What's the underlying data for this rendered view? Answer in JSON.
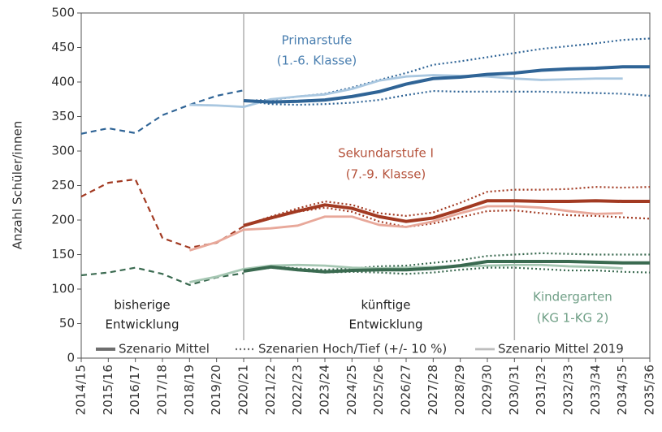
{
  "chart_data": {
    "type": "line",
    "y_label": "Anzahl Schüler/innen",
    "categories": [
      "2014/15",
      "2015/16",
      "2016/17",
      "2017/18",
      "2018/19",
      "2019/20",
      "2020/21",
      "2021/22",
      "2022/23",
      "2023/24",
      "2024/25",
      "2025/26",
      "2026/27",
      "2027/28",
      "2028/29",
      "2029/30",
      "2030/31",
      "2031/32",
      "2032/33",
      "2033/34",
      "2034/35",
      "2035/36"
    ],
    "ylim": [
      0,
      500
    ],
    "yticks": [
      0,
      50,
      100,
      150,
      200,
      250,
      300,
      350,
      400,
      450,
      500
    ],
    "vlines": [
      6,
      16
    ],
    "legend_position": "bottom",
    "legend": [
      {
        "label": "Szenario Mittel",
        "style": "thick",
        "color": "#6e6e6e"
      },
      {
        "label": "Szenarien Hoch/Tief (+/- 10 %)",
        "style": "dotted",
        "color": "#6e6e6e"
      },
      {
        "label": "Szenario Mittel 2019",
        "style": "light",
        "color": "#bdbdbd"
      }
    ],
    "annotations": [
      {
        "text": "Primarstufe",
        "color": "#4a7fb0"
      },
      {
        "text": "(1.-6. Klasse)",
        "color": "#4a7fb0"
      },
      {
        "text": "Sekundarstufe I",
        "color": "#b5533c"
      },
      {
        "text": "(7.-9. Klasse)",
        "color": "#b5533c"
      },
      {
        "text": "Kindergarten",
        "color": "#6f9f86"
      },
      {
        "text": "(KG 1-KG 2)",
        "color": "#6f9f86"
      },
      {
        "text": "bisherige",
        "color": "#222222"
      },
      {
        "text": "Entwicklung",
        "color": "#222222"
      },
      {
        "text": "künftige",
        "color": "#222222"
      },
      {
        "text": "Entwicklung",
        "color": "#222222"
      }
    ],
    "series": [
      {
        "style": "dashed",
        "color": "#2f6496",
        "values": [
          325,
          333,
          326,
          352,
          367,
          380,
          388,
          null,
          null,
          null,
          null,
          null,
          null,
          null,
          null,
          null,
          null,
          null,
          null,
          null,
          null,
          null
        ]
      },
      {
        "style": "dotted",
        "color": "#2f6496",
        "values": [
          null,
          null,
          null,
          null,
          null,
          null,
          373,
          374,
          379,
          383,
          392,
          403,
          413,
          425,
          430,
          436,
          442,
          448,
          452,
          456,
          461,
          463
        ]
      },
      {
        "style": "dotted",
        "color": "#2f6496",
        "values": [
          null,
          null,
          null,
          null,
          null,
          null,
          373,
          368,
          367,
          368,
          370,
          374,
          381,
          387,
          386,
          386,
          386,
          386,
          385,
          384,
          383,
          380
        ]
      },
      {
        "style": "light",
        "color": "#a9c7e0",
        "values": [
          null,
          null,
          null,
          null,
          367,
          366,
          364,
          375,
          379,
          382,
          390,
          402,
          408,
          410,
          409,
          408,
          405,
          403,
          404,
          405,
          405,
          null
        ]
      },
      {
        "style": "thick",
        "color": "#2f6496",
        "values": [
          null,
          null,
          null,
          null,
          null,
          null,
          373,
          371,
          372,
          374,
          379,
          386,
          397,
          405,
          407,
          411,
          413,
          417,
          419,
          420,
          422,
          422
        ]
      },
      {
        "style": "dashed",
        "color": "#a23a22",
        "values": [
          234,
          254,
          259,
          174,
          160,
          167,
          191,
          null,
          null,
          null,
          null,
          null,
          null,
          null,
          null,
          null,
          null,
          null,
          null,
          null,
          null,
          null
        ]
      },
      {
        "style": "dotted",
        "color": "#a23a22",
        "values": [
          null,
          null,
          null,
          null,
          null,
          null,
          192,
          205,
          217,
          227,
          222,
          210,
          206,
          211,
          225,
          241,
          244,
          244,
          245,
          248,
          247,
          248
        ]
      },
      {
        "style": "dotted",
        "color": "#a23a22",
        "values": [
          null,
          null,
          null,
          null,
          null,
          null,
          192,
          202,
          212,
          218,
          212,
          198,
          190,
          195,
          204,
          213,
          214,
          210,
          207,
          206,
          204,
          202
        ]
      },
      {
        "style": "light",
        "color": "#e8a89a",
        "values": [
          null,
          null,
          null,
          null,
          156,
          168,
          186,
          188,
          192,
          205,
          205,
          193,
          190,
          198,
          210,
          220,
          220,
          218,
          213,
          209,
          210,
          null
        ]
      },
      {
        "style": "thick",
        "color": "#a23a22",
        "values": [
          null,
          null,
          null,
          null,
          null,
          null,
          192,
          203,
          213,
          222,
          217,
          205,
          198,
          203,
          215,
          228,
          228,
          227,
          227,
          228,
          227,
          227
        ]
      },
      {
        "style": "dashed",
        "color": "#3a6a50",
        "values": [
          120,
          124,
          131,
          122,
          106,
          117,
          123,
          null,
          null,
          null,
          null,
          null,
          null,
          null,
          null,
          null,
          null,
          null,
          null,
          null,
          null,
          null
        ]
      },
      {
        "style": "dotted",
        "color": "#3a6a50",
        "values": [
          null,
          null,
          null,
          null,
          null,
          null,
          126,
          133,
          130,
          128,
          130,
          133,
          134,
          138,
          142,
          148,
          150,
          152,
          151,
          150,
          150,
          150
        ]
      },
      {
        "style": "dotted",
        "color": "#3a6a50",
        "values": [
          null,
          null,
          null,
          null,
          null,
          null,
          126,
          131,
          127,
          124,
          125,
          124,
          122,
          124,
          128,
          131,
          131,
          129,
          127,
          127,
          125,
          124
        ]
      },
      {
        "style": "light",
        "color": "#a6c7b3",
        "values": [
          null,
          null,
          null,
          null,
          110,
          118,
          129,
          134,
          135,
          134,
          131,
          130,
          131,
          132,
          133,
          134,
          135,
          135,
          133,
          132,
          130,
          null
        ]
      },
      {
        "style": "thick",
        "color": "#3a6a50",
        "values": [
          null,
          null,
          null,
          null,
          null,
          null,
          126,
          132,
          128,
          125,
          127,
          128,
          128,
          130,
          134,
          140,
          140,
          140,
          140,
          139,
          138,
          138
        ]
      }
    ]
  }
}
